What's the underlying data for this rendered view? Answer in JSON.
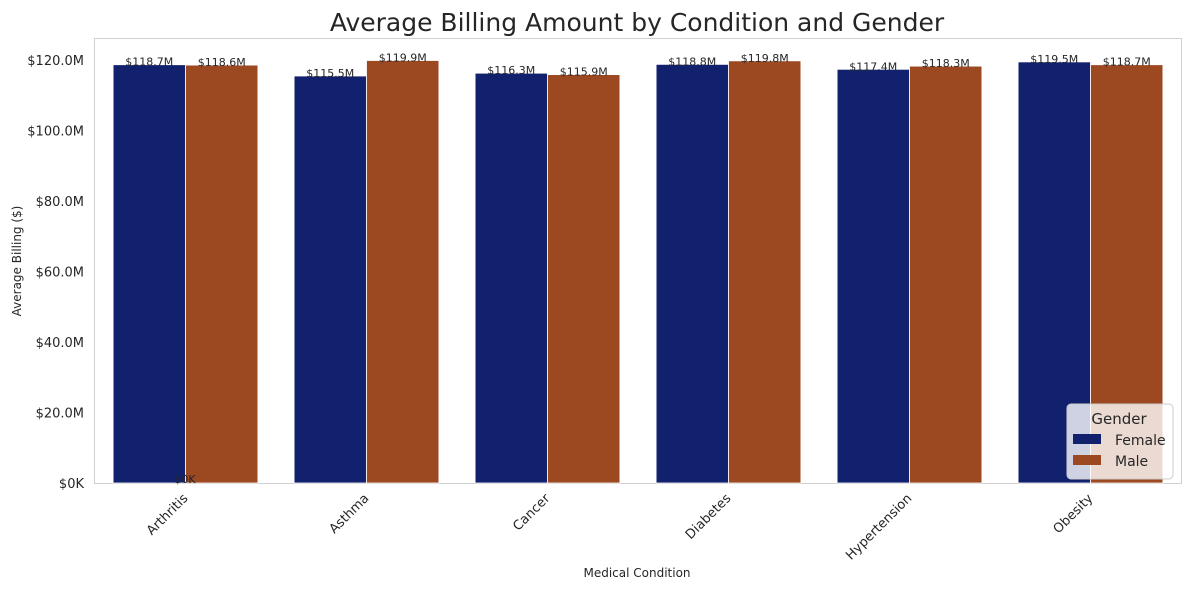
{
  "chart_data": {
    "type": "bar",
    "title": "Average Billing Amount by Condition and Gender",
    "xlabel": "Medical Condition",
    "ylabel": "Average Billing ($)",
    "ylim": [
      0,
      126000000
    ],
    "yticks": [
      0,
      20000000,
      40000000,
      60000000,
      80000000,
      100000000,
      120000000
    ],
    "ytick_labels": [
      "$0K",
      "$20.0M",
      "$40.0M",
      "$60.0M",
      "$80.0M",
      "$100.0M",
      "$120.0M"
    ],
    "categories": [
      "Arthritis",
      "Asthma",
      "Cancer",
      "Diabetes",
      "Hypertension",
      "Obesity"
    ],
    "series": [
      {
        "name": "Female",
        "color": "#12216e",
        "values": [
          118700000,
          115500000,
          116300000,
          118800000,
          117400000,
          119500000
        ],
        "labels": [
          "$118.7M",
          "$115.5M",
          "$116.3M",
          "$118.8M",
          "$117.4M",
          "$119.5M"
        ]
      },
      {
        "name": "Male",
        "color": "#9c4820",
        "values": [
          118600000,
          119900000,
          115900000,
          119800000,
          118300000,
          118700000
        ],
        "labels": [
          "$118.6M",
          "$119.9M",
          "$115.9M",
          "$119.8M",
          "$118.3M",
          "$118.7M"
        ]
      }
    ],
    "extra_annotation": "$0K",
    "grid": false,
    "legend": {
      "title": "Gender",
      "placement": "lower-right"
    }
  }
}
